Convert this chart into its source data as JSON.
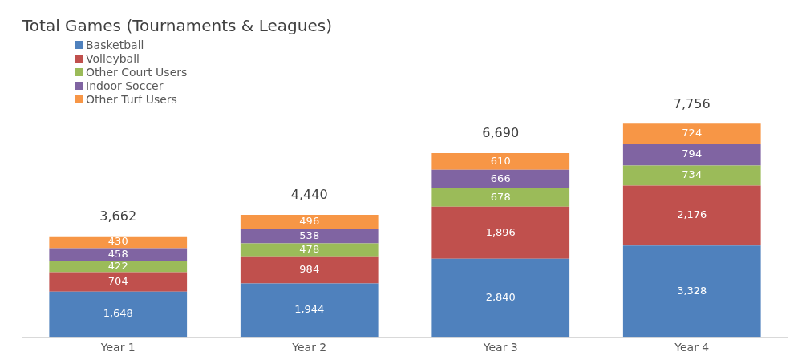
{
  "chart_data": {
    "type": "bar",
    "title": "Total Games (Tournaments & Leagues)",
    "categories": [
      "Year 1",
      "Year 2",
      "Year 3",
      "Year 4"
    ],
    "stacked": true,
    "legend": "top left",
    "grid": false,
    "tick_labels": "x",
    "series": [
      {
        "name": "Basketball",
        "color": "#4f81bd",
        "values": [
          1648,
          1944,
          2840,
          3328
        ],
        "value_labels": [
          "1,648",
          "1,944",
          "2,840",
          "3,328"
        ]
      },
      {
        "name": "Volleyball",
        "color": "#c0504d",
        "values": [
          704,
          984,
          1896,
          2176
        ],
        "value_labels": [
          "704",
          "984",
          "1,896",
          "2,176"
        ]
      },
      {
        "name": "Other Court Users",
        "color": "#9bbb59",
        "values": [
          422,
          478,
          678,
          734
        ],
        "value_labels": [
          "422",
          "478",
          "678",
          "734"
        ]
      },
      {
        "name": "Indoor Soccer",
        "color": "#8064a2",
        "values": [
          458,
          538,
          666,
          794
        ],
        "value_labels": [
          "458",
          "538",
          "666",
          "794"
        ]
      },
      {
        "name": "Other Turf Users",
        "color": "#f79646",
        "values": [
          430,
          496,
          610,
          724
        ],
        "value_labels": [
          "430",
          "496",
          "610",
          "724"
        ]
      }
    ],
    "totals": [
      "3,662",
      "4,440",
      "6,690",
      "7,756"
    ]
  }
}
